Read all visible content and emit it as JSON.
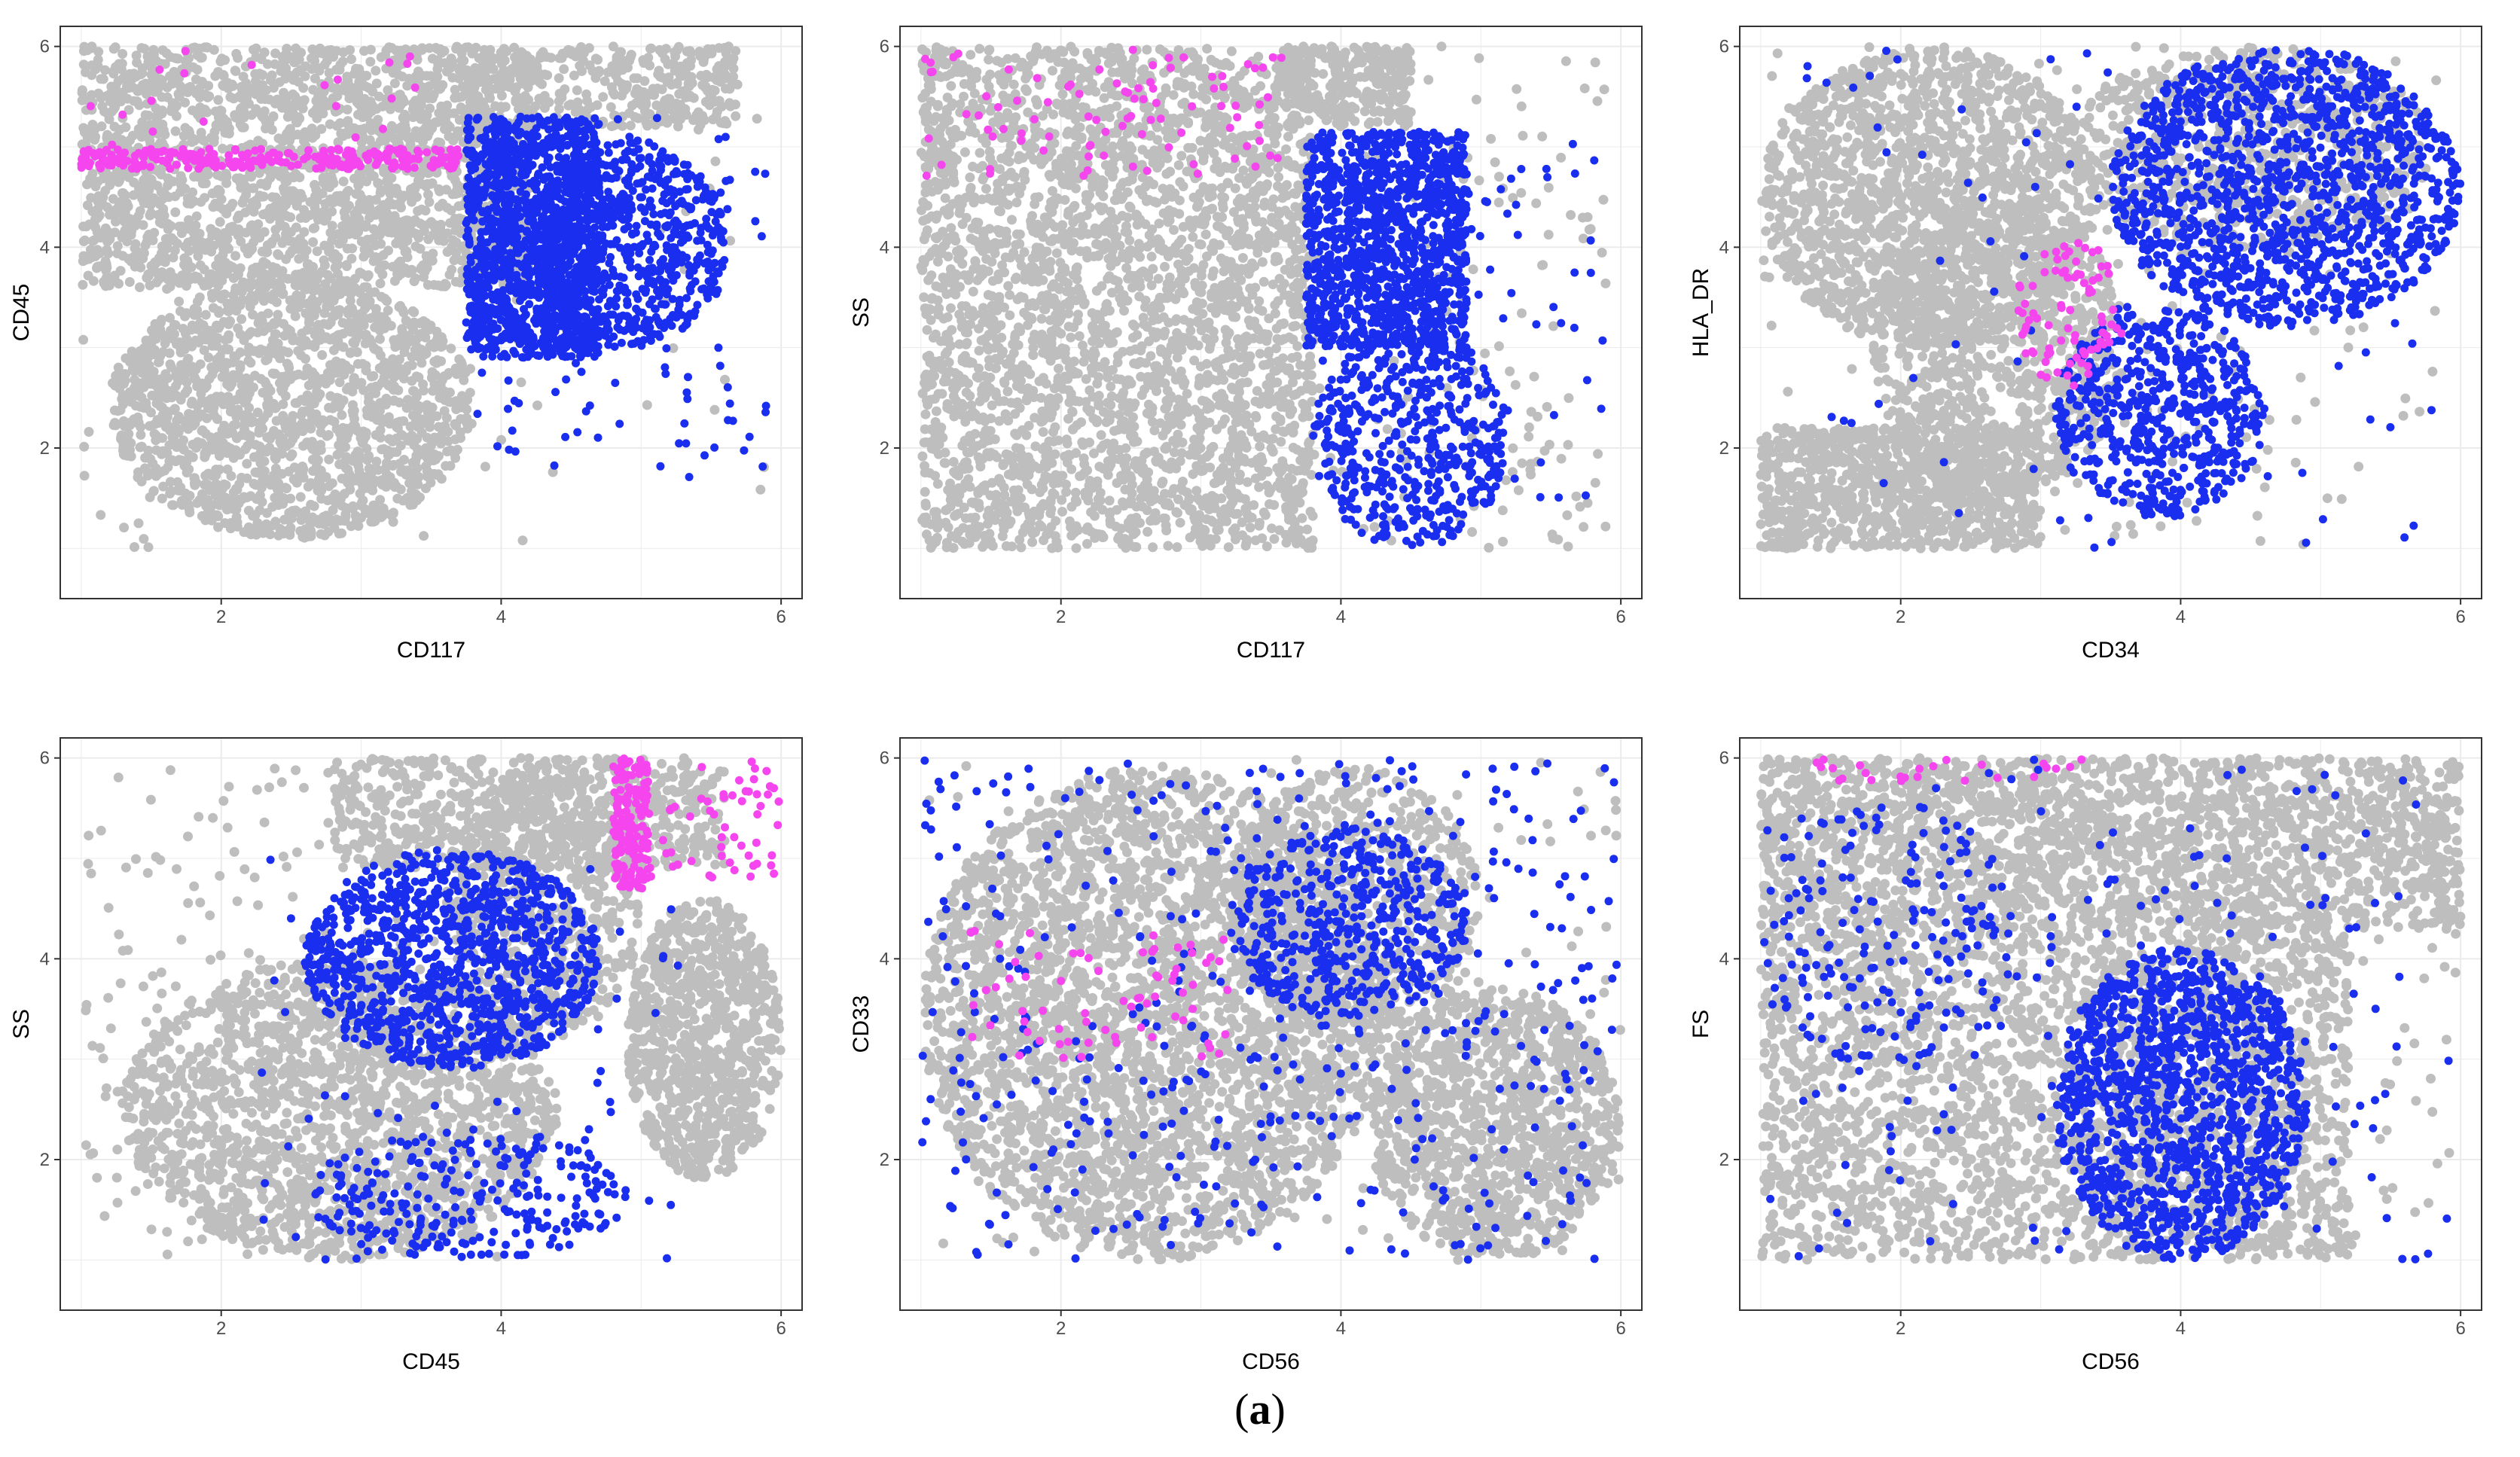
{
  "caption": {
    "open": "(",
    "letter": "a",
    "close": ")"
  },
  "colors": {
    "background_cells": "#BEBEBE",
    "blue_population": "#1A2EF0",
    "pink_population": "#F545EE",
    "grid": "#EBEBEB",
    "frame": "#333333"
  },
  "chart_data": [
    {
      "id": "p1",
      "type": "scatter",
      "xlabel": "CD117",
      "ylabel": "CD45",
      "xlim": [
        0.85,
        6.15
      ],
      "ylim": [
        0.5,
        6.2
      ],
      "xticks": [
        2,
        4,
        6
      ],
      "yticks": [
        2,
        4,
        6
      ],
      "series": [
        {
          "name": "gray",
          "color": "#BEBEBE",
          "shapes": [
            {
              "kind": "rect",
              "x": [
                1.0,
                4.2
              ],
              "y": [
                3.6,
                6.0
              ],
              "n": 2200
            },
            {
              "kind": "blob",
              "x": [
                1.2,
                3.8
              ],
              "y": [
                1.1,
                3.7
              ],
              "n": 1600
            },
            {
              "kind": "rect",
              "x": [
                3.7,
                5.7
              ],
              "y": [
                5.2,
                6.0
              ],
              "n": 400
            },
            {
              "kind": "scatter",
              "x": [
                1.0,
                5.9
              ],
              "y": [
                1.0,
                6.0
              ],
              "n": 120
            }
          ]
        },
        {
          "name": "blue",
          "color": "#1A2EF0",
          "shapes": [
            {
              "kind": "rect",
              "x": [
                3.75,
                4.7
              ],
              "y": [
                2.9,
                5.3
              ],
              "n": 1400
            },
            {
              "kind": "blob",
              "x": [
                4.2,
                5.6
              ],
              "y": [
                3.0,
                5.1
              ],
              "n": 700
            },
            {
              "kind": "scatter",
              "x": [
                3.8,
                5.9
              ],
              "y": [
                1.7,
                5.3
              ],
              "n": 120
            }
          ]
        },
        {
          "name": "pink",
          "color": "#F545EE",
          "shapes": [
            {
              "kind": "rect",
              "x": [
                1.0,
                3.7
              ],
              "y": [
                4.78,
                4.98
              ],
              "n": 260
            },
            {
              "kind": "scatter",
              "x": [
                1.0,
                3.8
              ],
              "y": [
                5.0,
                6.0
              ],
              "n": 20
            }
          ]
        }
      ]
    },
    {
      "id": "p2",
      "type": "scatter",
      "xlabel": "CD117",
      "ylabel": "SS",
      "xlim": [
        0.85,
        6.15
      ],
      "ylim": [
        0.5,
        6.2
      ],
      "xticks": [
        2,
        4,
        6
      ],
      "yticks": [
        2,
        4,
        6
      ],
      "series": [
        {
          "name": "gray",
          "color": "#BEBEBE",
          "shapes": [
            {
              "kind": "rect",
              "x": [
                1.0,
                3.8
              ],
              "y": [
                1.0,
                6.0
              ],
              "n": 3200
            },
            {
              "kind": "rect",
              "x": [
                3.6,
                4.5
              ],
              "y": [
                5.2,
                6.0
              ],
              "n": 300
            },
            {
              "kind": "scatter",
              "x": [
                3.8,
                5.9
              ],
              "y": [
                1.0,
                6.0
              ],
              "n": 160
            }
          ]
        },
        {
          "name": "blue",
          "color": "#1A2EF0",
          "shapes": [
            {
              "kind": "rect",
              "x": [
                3.75,
                4.9
              ],
              "y": [
                3.0,
                5.15
              ],
              "n": 1200
            },
            {
              "kind": "blob",
              "x": [
                3.8,
                5.2
              ],
              "y": [
                1.0,
                3.2
              ],
              "n": 500
            },
            {
              "kind": "scatter",
              "x": [
                3.8,
                5.9
              ],
              "y": [
                1.5,
                5.1
              ],
              "n": 80
            }
          ]
        },
        {
          "name": "pink",
          "color": "#F545EE",
          "shapes": [
            {
              "kind": "scatter",
              "x": [
                1.0,
                3.6
              ],
              "y": [
                4.7,
                6.0
              ],
              "n": 90
            }
          ]
        }
      ]
    },
    {
      "id": "p3",
      "type": "scatter",
      "xlabel": "CD34",
      "ylabel": "HLA_DR",
      "xlim": [
        0.85,
        6.15
      ],
      "ylim": [
        0.5,
        6.2
      ],
      "xticks": [
        2,
        4,
        6
      ],
      "yticks": [
        2,
        4,
        6
      ],
      "series": [
        {
          "name": "gray",
          "color": "#BEBEBE",
          "shapes": [
            {
              "kind": "blob",
              "x": [
                1.0,
                3.4
              ],
              "y": [
                3.0,
                6.0
              ],
              "n": 1600
            },
            {
              "kind": "rect",
              "x": [
                1.0,
                3.0
              ],
              "y": [
                1.0,
                2.2
              ],
              "n": 900
            },
            {
              "kind": "blob",
              "x": [
                1.8,
                3.6
              ],
              "y": [
                1.5,
                4.5
              ],
              "n": 900
            },
            {
              "kind": "blob",
              "x": [
                3.2,
                5.8
              ],
              "y": [
                4.0,
                6.0
              ],
              "n": 700
            },
            {
              "kind": "scatter",
              "x": [
                1.0,
                5.9
              ],
              "y": [
                1.0,
                6.0
              ],
              "n": 200
            }
          ]
        },
        {
          "name": "blue",
          "color": "#1A2EF0",
          "shapes": [
            {
              "kind": "blob",
              "x": [
                3.5,
                6.0
              ],
              "y": [
                3.2,
                6.0
              ],
              "n": 1400
            },
            {
              "kind": "blob",
              "x": [
                3.1,
                4.6
              ],
              "y": [
                1.3,
                3.4
              ],
              "n": 600
            },
            {
              "kind": "scatter",
              "x": [
                1.2,
                5.8
              ],
              "y": [
                1.0,
                6.0
              ],
              "n": 80
            }
          ]
        },
        {
          "name": "pink",
          "color": "#F545EE",
          "shapes": [
            {
              "kind": "blob",
              "x": [
                2.8,
                3.6
              ],
              "y": [
                2.6,
                4.1
              ],
              "n": 80
            }
          ]
        }
      ]
    },
    {
      "id": "p4",
      "type": "scatter",
      "xlabel": "CD45",
      "ylabel": "SS",
      "xlim": [
        0.85,
        6.15
      ],
      "ylim": [
        0.5,
        6.2
      ],
      "xticks": [
        2,
        4,
        6
      ],
      "yticks": [
        2,
        4,
        6
      ],
      "series": [
        {
          "name": "gray",
          "color": "#BEBEBE",
          "shapes": [
            {
              "kind": "blob",
              "x": [
                1.3,
                4.4
              ],
              "y": [
                1.0,
                4.0
              ],
              "n": 1800
            },
            {
              "kind": "rect",
              "x": [
                2.8,
                5.6
              ],
              "y": [
                4.9,
                6.0
              ],
              "n": 700
            },
            {
              "kind": "blob",
              "x": [
                3.6,
                5.0
              ],
              "y": [
                3.2,
                5.8
              ],
              "n": 600
            },
            {
              "kind": "blob",
              "x": [
                4.9,
                6.0
              ],
              "y": [
                1.8,
                4.6
              ],
              "n": 900
            },
            {
              "kind": "scatter",
              "x": [
                1.0,
                4.0
              ],
              "y": [
                1.0,
                5.9
              ],
              "n": 220
            }
          ]
        },
        {
          "name": "blue",
          "color": "#1A2EF0",
          "shapes": [
            {
              "kind": "blob",
              "x": [
                2.6,
                4.7
              ],
              "y": [
                2.9,
                5.1
              ],
              "n": 1100
            },
            {
              "kind": "blob",
              "x": [
                2.6,
                4.9
              ],
              "y": [
                1.0,
                2.3
              ],
              "n": 250
            },
            {
              "kind": "scatter",
              "x": [
                2.2,
                5.3
              ],
              "y": [
                1.0,
                5.0
              ],
              "n": 80
            }
          ]
        },
        {
          "name": "pink",
          "color": "#F545EE",
          "shapes": [
            {
              "kind": "rect",
              "x": [
                4.8,
                5.05
              ],
              "y": [
                4.7,
                6.0
              ],
              "n": 160
            },
            {
              "kind": "scatter",
              "x": [
                5.0,
                6.0
              ],
              "y": [
                4.8,
                6.0
              ],
              "n": 60
            }
          ]
        }
      ]
    },
    {
      "id": "p5",
      "type": "scatter",
      "xlabel": "CD56",
      "ylabel": "CD33",
      "xlim": [
        0.85,
        6.15
      ],
      "ylim": [
        0.5,
        6.2
      ],
      "xticks": [
        2,
        4,
        6
      ],
      "yticks": [
        2,
        4,
        6
      ],
      "series": [
        {
          "name": "gray",
          "color": "#BEBEBE",
          "shapes": [
            {
              "kind": "blob",
              "x": [
                1.0,
                4.3
              ],
              "y": [
                1.0,
                5.9
              ],
              "n": 3000
            },
            {
              "kind": "blob",
              "x": [
                3.2,
                5.0
              ],
              "y": [
                3.2,
                5.9
              ],
              "n": 700
            },
            {
              "kind": "blob",
              "x": [
                4.2,
                6.0
              ],
              "y": [
                1.0,
                3.7
              ],
              "n": 1100
            },
            {
              "kind": "scatter",
              "x": [
                1.0,
                6.0
              ],
              "y": [
                1.0,
                6.0
              ],
              "n": 200
            }
          ]
        },
        {
          "name": "blue",
          "color": "#1A2EF0",
          "shapes": [
            {
              "kind": "scatter",
              "x": [
                1.0,
                6.0
              ],
              "y": [
                1.0,
                6.0
              ],
              "n": 450
            },
            {
              "kind": "blob",
              "x": [
                3.2,
                4.9
              ],
              "y": [
                3.4,
                5.3
              ],
              "n": 450
            }
          ]
        },
        {
          "name": "pink",
          "color": "#F545EE",
          "shapes": [
            {
              "kind": "scatter",
              "x": [
                1.2,
                3.2
              ],
              "y": [
                3.0,
                4.3
              ],
              "n": 70
            }
          ]
        }
      ]
    },
    {
      "id": "p6",
      "type": "scatter",
      "xlabel": "CD56",
      "ylabel": "FS",
      "xlim": [
        0.85,
        6.15
      ],
      "ylim": [
        0.5,
        6.2
      ],
      "xticks": [
        2,
        4,
        6
      ],
      "yticks": [
        2,
        4,
        6
      ],
      "series": [
        {
          "name": "gray",
          "color": "#BEBEBE",
          "shapes": [
            {
              "kind": "rect",
              "x": [
                1.0,
                6.0
              ],
              "y": [
                4.3,
                6.0
              ],
              "n": 2200
            },
            {
              "kind": "rect",
              "x": [
                1.0,
                5.2
              ],
              "y": [
                1.0,
                4.3
              ],
              "n": 2400
            },
            {
              "kind": "scatter",
              "x": [
                1.0,
                6.0
              ],
              "y": [
                1.0,
                6.0
              ],
              "n": 180
            }
          ]
        },
        {
          "name": "blue",
          "color": "#1A2EF0",
          "shapes": [
            {
              "kind": "blob",
              "x": [
                3.1,
                4.9
              ],
              "y": [
                1.0,
                4.1
              ],
              "n": 1300
            },
            {
              "kind": "blob",
              "x": [
                1.0,
                2.8
              ],
              "y": [
                2.8,
                5.6
              ],
              "n": 160
            },
            {
              "kind": "scatter",
              "x": [
                1.0,
                6.0
              ],
              "y": [
                1.0,
                6.0
              ],
              "n": 180
            }
          ]
        },
        {
          "name": "pink",
          "color": "#F545EE",
          "shapes": [
            {
              "kind": "rect",
              "x": [
                1.3,
                3.3
              ],
              "y": [
                5.75,
                6.0
              ],
              "n": 25
            }
          ]
        }
      ]
    }
  ]
}
